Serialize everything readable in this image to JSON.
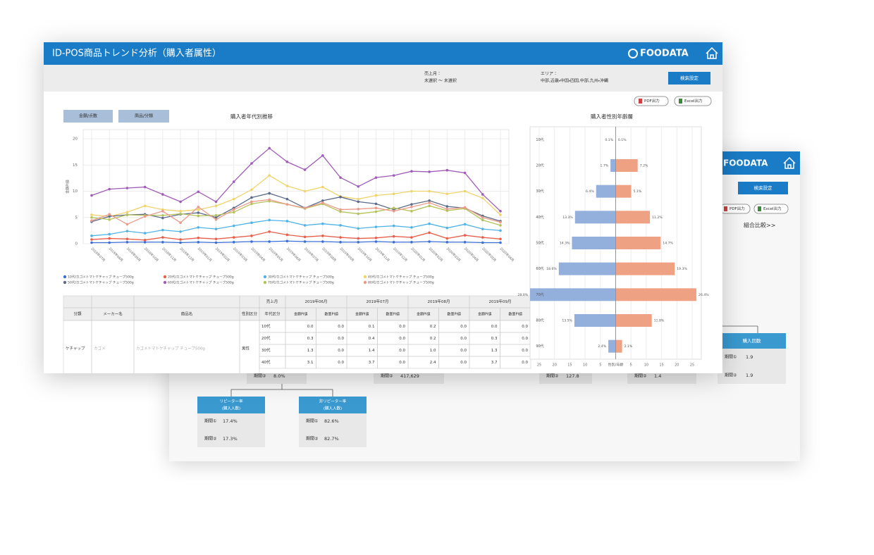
{
  "front_window": {
    "title": "ID-POS商品トレンド分析（購入者属性）",
    "logo": "FOODATA",
    "filters": [
      {
        "label": "売上月：",
        "value": "未選択 ～ 未選択"
      },
      {
        "label": "エリア：",
        "value": "中部,近畿・中国・四国,中部,九州・沖縄"
      }
    ],
    "search_button": "検索設定",
    "export_buttons": [
      "PDF出力",
      "Excel出力"
    ],
    "tabs": [
      "金額/点数",
      "商品/分類"
    ],
    "table": {
      "period_header": "売上月",
      "months": [
        "2019年06月",
        "2019年07月",
        "2019年08月",
        "2019年09月"
      ],
      "columns": [
        "分類",
        "メーカー名",
        "商品名",
        "性別区分",
        "年代区分"
      ],
      "measures": [
        "金額PI値",
        "数量PI値"
      ],
      "group": [
        "ケチャップ",
        "カゴメ",
        "カゴメトマトケチャップ チューブ500g",
        "男性"
      ],
      "rows": [
        {
          "age": "10代",
          "cells": [
            "0.0",
            "0.0",
            "0.1",
            "0.0",
            "0.2",
            "0.0",
            "0.0",
            "0.0"
          ]
        },
        {
          "age": "20代",
          "cells": [
            "0.3",
            "0.0",
            "0.4",
            "0.0",
            "0.2",
            "0.0",
            "0.3",
            "0.0"
          ]
        },
        {
          "age": "30代",
          "cells": [
            "1.3",
            "0.0",
            "1.4",
            "0.0",
            "1.0",
            "0.0",
            "1.3",
            "0.0"
          ]
        },
        {
          "age": "40代",
          "cells": [
            "3.1",
            "0.0",
            "3.7",
            "0.0",
            "2.4",
            "0.0",
            "3.7",
            "0.0"
          ]
        }
      ]
    }
  },
  "chart_data": [
    {
      "type": "line",
      "title": "購入者年代別推移",
      "y_label": "金額PI値",
      "categories": [
        "2018年07月",
        "2018年08月",
        "2018年09月",
        "2018年10月",
        "2018年11月",
        "2018年12月",
        "2019年01月",
        "2019年02月",
        "2019年03月",
        "2019年04月",
        "2019年05月",
        "2019年06月",
        "2019年07月",
        "2019年08月",
        "2019年09月",
        "2019年10月",
        "2019年11月",
        "2019年12月",
        "2020年01月",
        "2020年02月",
        "2020年03月",
        "2020年04月",
        "2020年05月",
        "2020年06月"
      ],
      "ylim": [
        0,
        20
      ],
      "yticks": [
        0,
        5,
        10,
        15,
        20
      ],
      "grid": true,
      "series": [
        {
          "name": "10代/カゴメトマトケチャップ チューブ500g",
          "color": "#3b6fd6",
          "values": [
            0.2,
            0.2,
            0.3,
            0.3,
            0.3,
            0.2,
            0.3,
            0.2,
            0.3,
            0.4,
            0.4,
            0.5,
            0.4,
            0.4,
            0.3,
            0.3,
            0.4,
            0.3,
            0.3,
            0.4,
            0.3,
            0.3,
            0.2,
            0.2
          ]
        },
        {
          "name": "20代/カゴメトマトケチャップ チューブ500g",
          "color": "#e8604c",
          "values": [
            0.8,
            1.0,
            0.9,
            0.7,
            1.2,
            0.8,
            1.1,
            0.9,
            1.2,
            1.5,
            2.3,
            1.7,
            1.3,
            1.5,
            1.2,
            1.0,
            1.1,
            1.4,
            1.2,
            2.1,
            1.0,
            1.6,
            1.2,
            0.9
          ]
        },
        {
          "name": "30代/カゴメトマトケチャップ チューブ500g",
          "color": "#4fb3e8",
          "values": [
            1.5,
            1.8,
            2.4,
            2.0,
            2.6,
            2.3,
            3.1,
            2.8,
            3.4,
            4.0,
            4.5,
            4.3,
            3.5,
            3.8,
            3.5,
            2.9,
            3.2,
            3.4,
            3.1,
            3.8,
            3.0,
            3.7,
            2.8,
            2.5
          ]
        },
        {
          "name": "40代/カゴメトマトケチャップ チューブ500g",
          "color": "#f0d36a",
          "values": [
            5.5,
            5.2,
            6.0,
            7.2,
            6.5,
            6.2,
            6.5,
            7.2,
            8.5,
            10.3,
            13.0,
            11.0,
            10.0,
            10.8,
            9.0,
            8.5,
            9.2,
            9.5,
            10.0,
            10.0,
            9.5,
            10.0,
            8.7,
            5.5
          ]
        },
        {
          "name": "50代/カゴメトマトケチャップ チューブ500g",
          "color": "#5c6b8a",
          "values": [
            4.2,
            5.2,
            5.5,
            5.6,
            4.9,
            5.6,
            5.9,
            5.0,
            6.8,
            8.8,
            9.6,
            8.5,
            6.8,
            8.2,
            8.9,
            8.0,
            7.6,
            6.5,
            7.5,
            8.2,
            7.1,
            6.8,
            5.3,
            4.3
          ]
        },
        {
          "name": "60代/カゴメトマトケチャップ チューブ500g",
          "color": "#a05cb8",
          "values": [
            9.2,
            10.4,
            10.6,
            10.8,
            9.4,
            8.0,
            9.9,
            8.0,
            11.8,
            15.3,
            18.2,
            15.6,
            14.1,
            16.8,
            12.6,
            10.9,
            12.6,
            13.0,
            13.8,
            13.7,
            14.0,
            13.5,
            9.4,
            6.2
          ]
        },
        {
          "name": "70代/カゴメトマトケチャップ チューブ500g",
          "color": "#b5c25a",
          "values": [
            5.0,
            4.6,
            5.5,
            5.4,
            5.4,
            5.7,
            5.3,
            5.4,
            6.0,
            7.6,
            8.1,
            7.5,
            6.7,
            7.6,
            6.1,
            5.7,
            6.1,
            6.8,
            6.2,
            7.2,
            6.3,
            6.7,
            4.5,
            3.5
          ]
        },
        {
          "name": "80代/カゴメトマトケチャップ チューブ500g",
          "color": "#eb9a8a",
          "values": [
            4.4,
            5.6,
            3.7,
            5.2,
            6.2,
            4.0,
            7.0,
            4.6,
            6.5,
            8.0,
            8.4,
            7.5,
            6.8,
            7.8,
            6.5,
            6.6,
            6.8,
            6.2,
            7.0,
            7.8,
            6.6,
            6.9,
            5.0,
            4.1
          ]
        }
      ]
    },
    {
      "type": "pyramid",
      "title": "購入者性別年齢層",
      "x_label": "性別/年齢",
      "categories": [
        "10代",
        "20代",
        "30代",
        "40代",
        "50代",
        "60代",
        "70代",
        "80代",
        "90代"
      ],
      "xlim": [
        -28,
        28
      ],
      "xticks": [
        {
          "value": -25,
          "label": "25"
        },
        {
          "value": -20,
          "label": "20"
        },
        {
          "value": -15,
          "label": "15"
        },
        {
          "value": -10,
          "label": "10"
        },
        {
          "value": -5,
          "label": "5"
        },
        5,
        10,
        15,
        20,
        25
      ],
      "grid": true,
      "series": [
        {
          "color": "#93b0dc",
          "values": [
            0.1,
            1.7,
            6.4,
            13.3,
            14.3,
            18.6,
            28.0,
            13.5,
            2.4
          ],
          "value_labels": [
            "0.1%",
            "1.7%",
            "6.4%",
            "13.3%",
            "14.3%",
            "18.6%",
            "28.0%",
            "13.5%",
            "2.4%"
          ]
        },
        {
          "color": "#efa184",
          "values": [
            0.1,
            7.2,
            5.1,
            11.2,
            14.7,
            19.3,
            26.4,
            11.8,
            2.1
          ],
          "value_labels": [
            "0.1%",
            "7.2%",
            "5.1%",
            "11.2%",
            "14.7%",
            "19.3%",
            "26.4%",
            "11.8%",
            "2.1%"
          ]
        }
      ]
    }
  ],
  "back_window": {
    "logo": "FOODATA",
    "search_button": "検索設定",
    "export_buttons": [
      "PDF出力",
      "Excel出力"
    ],
    "compare_link": "組合比較>>",
    "metric_box": {
      "title": "購入回数",
      "rows": [
        [
          "期間①",
          "1.9"
        ],
        [
          "期間②",
          "1.9"
        ]
      ]
    },
    "partial_values": [
      [
        "期間②",
        "8.0%"
      ],
      [
        "期間②",
        "417,629"
      ],
      [
        "期間②",
        "127.8"
      ],
      [
        "期間②",
        "1.4"
      ]
    ],
    "tree_nodes": [
      {
        "title": "リピーター率",
        "subtitle": "(購入人数)",
        "rows": [
          [
            "期間①",
            "17.4%"
          ],
          [
            "期間②",
            "17.3%"
          ]
        ]
      },
      {
        "title": "非リピーター率",
        "subtitle": "(購入人数)",
        "rows": [
          [
            "期間①",
            "82.6%"
          ],
          [
            "期間②",
            "82.7%"
          ]
        ]
      }
    ]
  }
}
